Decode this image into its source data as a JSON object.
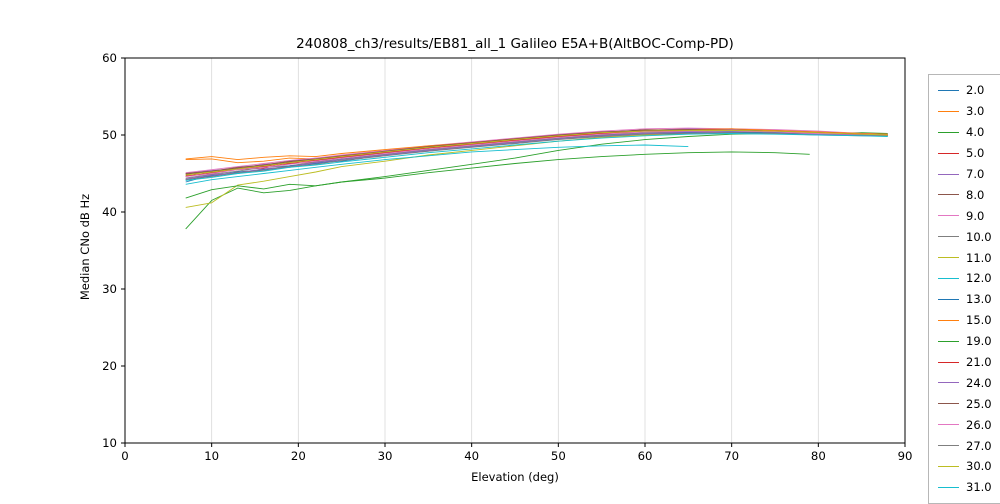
{
  "chart_data": {
    "type": "line",
    "title": "240808_ch3/results/EB81_all_1 Galileo E5A+B(AltBOC-Comp-PD)",
    "xlabel": "Elevation (deg)",
    "ylabel": "Median CNo dB Hz",
    "xlim": [
      0,
      90
    ],
    "ylim": [
      10,
      60
    ],
    "xticks": [
      0,
      10,
      20,
      30,
      40,
      50,
      60,
      70,
      80,
      90
    ],
    "yticks": [
      10,
      20,
      30,
      40,
      50,
      60
    ],
    "grid": "vertical",
    "legend_position": "right-outside",
    "x_default": [
      7,
      10,
      13,
      16,
      19,
      22,
      25,
      30,
      35,
      40,
      45,
      50,
      55,
      60,
      65,
      70,
      75,
      80,
      85,
      88
    ],
    "series": [
      {
        "name": "2.0",
        "color": "#1f77b4",
        "y": [
          43.9,
          44.8,
          45.0,
          45.6,
          45.8,
          46.4,
          46.6,
          47.4,
          47.9,
          48.5,
          48.9,
          49.5,
          50.0,
          50.1,
          50.3,
          50.4,
          50.2,
          50.1,
          50.0,
          49.9
        ]
      },
      {
        "name": "3.0",
        "color": "#ff7f0e",
        "y": [
          46.8,
          46.9,
          46.4,
          46.6,
          47.0,
          46.9,
          47.3,
          47.9,
          48.4,
          48.9,
          49.4,
          49.9,
          50.3,
          50.6,
          50.8,
          50.7,
          50.6,
          50.3,
          50.2,
          50.1
        ]
      },
      {
        "name": "4.0",
        "color": "#2ca02c",
        "y": [
          37.8,
          41.5,
          43.1,
          42.5,
          42.8,
          43.4,
          43.9,
          44.6,
          45.4,
          46.2,
          47.0,
          48.0,
          48.8,
          49.4,
          49.8,
          50.1,
          50.2,
          50.2,
          50.3,
          50.2
        ]
      },
      {
        "name": "5.0",
        "color": "#d62728",
        "y": [
          44.6,
          45.1,
          45.5,
          45.7,
          46.3,
          46.5,
          47.1,
          47.7,
          48.1,
          48.8,
          49.1,
          49.8,
          50.0,
          50.5,
          50.4,
          50.6,
          50.3,
          50.2,
          50.1,
          50.0
        ]
      },
      {
        "name": "7.0",
        "color": "#9467bd",
        "y": [
          45.0,
          45.4,
          45.6,
          46.2,
          46.4,
          47.0,
          47.2,
          47.9,
          48.5,
          49.0,
          49.5,
          50.0,
          50.4,
          50.6,
          50.8,
          50.7,
          50.6,
          50.4,
          50.2,
          50.1
        ]
      },
      {
        "name": "8.0",
        "color": "#8c564b",
        "y": [
          44.9,
          45.2,
          45.7,
          46.0,
          46.5,
          46.8,
          47.2,
          47.8,
          48.4,
          48.9,
          49.4,
          49.9,
          50.3,
          50.7,
          50.6,
          50.8,
          50.5,
          50.3,
          50.1,
          50.0
        ]
      },
      {
        "name": "9.0",
        "color": "#e377c2",
        "y": [
          45.1,
          45.5,
          45.9,
          46.3,
          46.7,
          47.0,
          47.4,
          48.0,
          48.6,
          49.1,
          49.6,
          50.1,
          50.5,
          50.8,
          50.9,
          50.8,
          50.7,
          50.5,
          50.2,
          50.1
        ]
      },
      {
        "name": "10.0",
        "color": "#7f7f7f",
        "y": [
          44.4,
          44.9,
          45.3,
          45.8,
          46.0,
          46.5,
          46.9,
          47.5,
          48.1,
          48.6,
          49.1,
          49.6,
          50.0,
          50.3,
          50.4,
          50.5,
          50.3,
          50.2,
          50.0,
          50.0
        ]
      },
      {
        "name": "11.0",
        "color": "#bcbd22",
        "y": [
          40.6,
          41.2,
          43.5,
          44.0,
          44.6,
          45.2,
          45.9,
          46.6,
          47.4,
          48.0,
          48.6,
          49.2,
          49.7,
          50.0,
          50.2,
          50.3,
          50.2,
          50.1,
          50.0,
          49.9
        ]
      },
      {
        "name": "12.0",
        "color": "#17becf",
        "x": [
          7,
          10,
          13,
          16,
          19,
          22,
          25,
          30,
          35,
          40,
          45,
          50,
          55,
          60,
          65
        ],
        "y": [
          43.6,
          44.2,
          44.6,
          45.0,
          45.4,
          45.8,
          46.2,
          46.8,
          47.3,
          47.8,
          48.1,
          48.4,
          48.6,
          48.7,
          48.5
        ]
      },
      {
        "name": "13.0",
        "color": "#1f77b4",
        "y": [
          44.2,
          44.7,
          45.2,
          45.5,
          46.0,
          46.3,
          46.8,
          47.4,
          48.0,
          48.5,
          49.0,
          49.5,
          49.9,
          50.2,
          50.3,
          50.4,
          50.3,
          50.1,
          50.0,
          49.9
        ]
      },
      {
        "name": "15.0",
        "color": "#ff7f0e",
        "y": [
          46.9,
          47.2,
          46.8,
          47.1,
          47.3,
          47.2,
          47.6,
          48.1,
          48.6,
          49.0,
          49.5,
          49.9,
          50.3,
          50.6,
          50.7,
          50.8,
          50.6,
          50.4,
          50.2,
          50.1
        ]
      },
      {
        "name": "19.0",
        "color": "#2ca02c",
        "x": [
          7,
          10,
          13,
          16,
          19,
          22,
          25,
          30,
          35,
          40,
          45,
          50,
          55,
          60,
          65,
          70,
          75,
          79
        ],
        "y": [
          41.8,
          42.9,
          43.4,
          43.0,
          43.6,
          43.4,
          43.9,
          44.4,
          45.1,
          45.7,
          46.3,
          46.8,
          47.2,
          47.5,
          47.7,
          47.8,
          47.7,
          47.5
        ]
      },
      {
        "name": "21.0",
        "color": "#d62728",
        "y": [
          44.7,
          45.0,
          45.6,
          45.9,
          46.4,
          46.7,
          47.1,
          47.7,
          48.3,
          48.8,
          49.3,
          49.8,
          50.2,
          50.5,
          50.6,
          50.6,
          50.4,
          50.3,
          50.1,
          50.0
        ]
      },
      {
        "name": "24.0",
        "color": "#9467bd",
        "y": [
          44.3,
          44.8,
          45.1,
          45.6,
          45.9,
          46.4,
          46.8,
          47.4,
          48.0,
          48.5,
          49.0,
          49.5,
          49.9,
          50.2,
          50.4,
          50.3,
          50.2,
          50.1,
          50.0,
          49.9
        ]
      },
      {
        "name": "25.0",
        "color": "#8c564b",
        "y": [
          45.0,
          45.3,
          45.8,
          46.1,
          46.6,
          46.9,
          47.3,
          47.9,
          48.5,
          49.0,
          49.5,
          50.0,
          50.4,
          50.6,
          50.7,
          50.6,
          50.5,
          50.3,
          50.1,
          50.0
        ]
      },
      {
        "name": "26.0",
        "color": "#e377c2",
        "y": [
          44.6,
          45.0,
          45.5,
          45.8,
          46.2,
          46.6,
          47.0,
          47.6,
          48.2,
          48.7,
          49.2,
          49.7,
          50.1,
          50.4,
          50.5,
          50.5,
          50.4,
          50.2,
          50.1,
          50.0
        ]
      },
      {
        "name": "27.0",
        "color": "#7f7f7f",
        "y": [
          44.2,
          44.6,
          45.1,
          45.4,
          45.9,
          46.2,
          46.7,
          47.3,
          47.9,
          48.4,
          48.9,
          49.4,
          49.8,
          50.1,
          50.2,
          50.3,
          50.2,
          50.0,
          49.9,
          49.9
        ]
      },
      {
        "name": "30.0",
        "color": "#bcbd22",
        "y": [
          44.8,
          45.2,
          45.6,
          46.0,
          46.4,
          46.8,
          47.2,
          47.8,
          48.4,
          48.9,
          49.4,
          49.9,
          50.3,
          50.5,
          50.6,
          50.6,
          50.5,
          50.3,
          50.1,
          50.0
        ]
      },
      {
        "name": "31.0",
        "color": "#17becf",
        "y": [
          44.1,
          44.5,
          45.0,
          45.3,
          45.8,
          46.1,
          46.5,
          47.1,
          47.7,
          48.2,
          48.7,
          49.2,
          49.6,
          49.9,
          50.1,
          50.2,
          50.1,
          50.0,
          49.9,
          49.8
        ]
      }
    ]
  }
}
